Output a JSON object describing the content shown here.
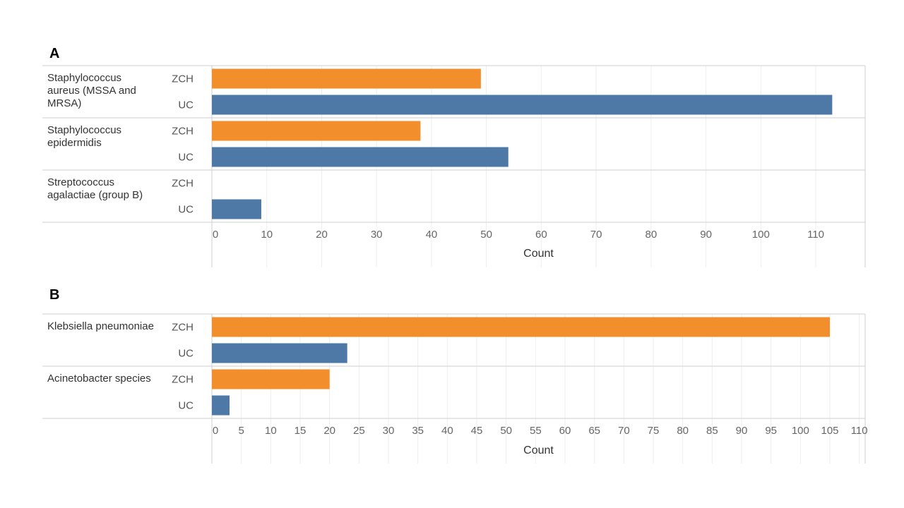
{
  "colors": {
    "ZCH": "#f28e2b",
    "UC": "#4e79a7",
    "grid": "#eeeeee",
    "border": "#cfcfcf"
  },
  "chart_data": [
    {
      "panel": "A",
      "type": "bar",
      "orientation": "horizontal",
      "categories": [
        "Staphylococcus aureus (MSSA and MRSA)",
        "Staphylococcus epidermidis",
        "Streptococcus agalactiae (group B)"
      ],
      "category_lines": [
        [
          "Staphylococcus",
          "aureus (MSSA and",
          "MRSA)"
        ],
        [
          "Staphylococcus",
          "epidermidis"
        ],
        [
          "Streptococcus",
          "agalactiae (group B)"
        ]
      ],
      "groups": [
        "ZCH",
        "UC"
      ],
      "series": [
        {
          "name": "ZCH",
          "values": [
            49,
            38,
            0
          ]
        },
        {
          "name": "UC",
          "values": [
            113,
            54,
            9
          ]
        }
      ],
      "xlabel": "Count",
      "xlim": [
        0,
        119
      ],
      "ticks": [
        0,
        10,
        20,
        30,
        40,
        50,
        60,
        70,
        80,
        90,
        100,
        110
      ],
      "grid": true
    },
    {
      "panel": "B",
      "type": "bar",
      "orientation": "horizontal",
      "categories": [
        "Klebsiella pneumoniae",
        "Acinetobacter species"
      ],
      "category_lines": [
        [
          "Klebsiella pneumoniae"
        ],
        [
          "Acinetobacter species"
        ]
      ],
      "groups": [
        "ZCH",
        "UC"
      ],
      "series": [
        {
          "name": "ZCH",
          "values": [
            105,
            20
          ]
        },
        {
          "name": "UC",
          "values": [
            23,
            3
          ]
        }
      ],
      "xlabel": "Count",
      "xlim": [
        0,
        111
      ],
      "ticks": [
        0,
        5,
        10,
        15,
        20,
        25,
        30,
        35,
        40,
        45,
        50,
        55,
        60,
        65,
        70,
        75,
        80,
        85,
        90,
        95,
        100,
        105,
        110
      ],
      "grid": true
    }
  ]
}
